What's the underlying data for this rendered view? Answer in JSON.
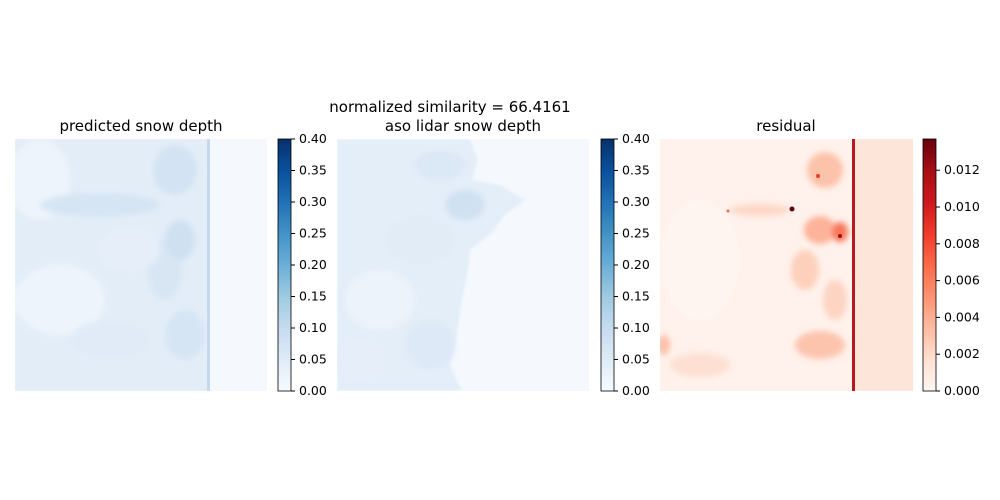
{
  "figure": {
    "suptitle": "normalized similarity = 66.4161"
  },
  "colors": {
    "blues_low": "#f7fbff",
    "blues_high": "#08306b",
    "reds_low": "#fff5f0",
    "reds_high": "#67000d"
  },
  "chart_data": [
    {
      "type": "heatmap",
      "title": "predicted snow depth",
      "colormap": "Blues",
      "vmin": 0.0,
      "vmax": 0.4,
      "colorbar_ticks": [
        "0.00",
        "0.05",
        "0.10",
        "0.15",
        "0.20",
        "0.25",
        "0.30",
        "0.35",
        "0.40"
      ],
      "axes_visible": false,
      "description": ""
    },
    {
      "type": "heatmap",
      "title": "aso lidar snow depth",
      "colormap": "Blues",
      "vmin": 0.0,
      "vmax": 0.4,
      "colorbar_ticks": [
        "0.00",
        "0.05",
        "0.10",
        "0.15",
        "0.20",
        "0.25",
        "0.30",
        "0.35",
        "0.40"
      ],
      "axes_visible": false
    },
    {
      "type": "heatmap",
      "title": "residual",
      "colormap": "Reds",
      "vmin": 0.0,
      "vmax": 0.0137,
      "colorbar_ticks": [
        "0.000",
        "0.002",
        "0.004",
        "0.006",
        "0.008",
        "0.010",
        "0.012"
      ],
      "axes_visible": false
    }
  ]
}
